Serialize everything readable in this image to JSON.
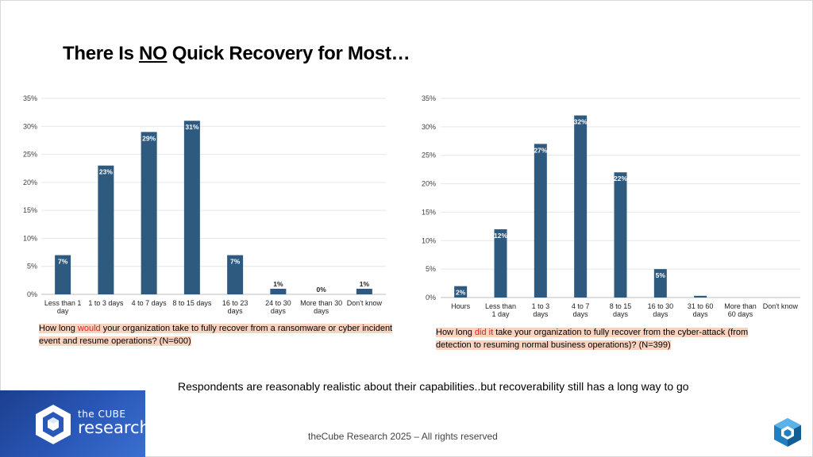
{
  "title": {
    "prefix": "There Is ",
    "emphasis": "NO",
    "suffix": " Quick Recovery for Most…"
  },
  "chart_data": [
    {
      "type": "bar",
      "categories": [
        "Less than 1 day",
        "1 to 3 days",
        "4 to 7 days",
        "8 to 15 days",
        "16 to 23 days",
        "24 to 30 days",
        "More than 30 days",
        "Don't know"
      ],
      "values": [
        7,
        23,
        29,
        31,
        7,
        1,
        0,
        1
      ],
      "data_labels": [
        "7%",
        "23%",
        "29%",
        "31%",
        "7%",
        "1%",
        "0%",
        "1%"
      ],
      "yticks": [
        "0%",
        "5%",
        "10%",
        "15%",
        "20%",
        "25%",
        "30%",
        "35%"
      ],
      "ylim": [
        0,
        35
      ],
      "ylabel": "",
      "xlabel": "",
      "question": {
        "before": "How long ",
        "highlight": "would",
        "after": " your organization take to fully recover from a ransomware or cyber incident event and resume operations? (N=600)"
      }
    },
    {
      "type": "bar",
      "categories": [
        "Hours",
        "Less than 1 day",
        "1 to 3 days",
        "4 to 7 days",
        "8 to 15 days",
        "16 to 30 days",
        "31 to 60 days",
        "More than 60 days",
        "Don't know"
      ],
      "values": [
        2,
        12,
        27,
        32,
        22,
        5,
        0.3,
        0,
        0
      ],
      "data_labels": [
        "2%",
        "12%",
        "27%",
        "32%",
        "22%",
        "5%",
        "",
        "",
        ""
      ],
      "yticks": [
        "0%",
        "5%",
        "10%",
        "15%",
        "20%",
        "25%",
        "30%",
        "35%"
      ],
      "ylim": [
        0,
        35
      ],
      "ylabel": "",
      "xlabel": "",
      "question": {
        "before": "How long ",
        "highlight": "did it",
        "after": " take your organization to fully recover from the cyber-attack (from detection to resuming normal business operations)? (N=399)"
      }
    }
  ],
  "summary": "Respondents are reasonably realistic about their capabilities..but recoverability still has a long way to go",
  "footer": "theCube Research 2025 – All rights reserved",
  "logo": {
    "line1": "the CUBE",
    "line2": "research"
  },
  "colors": {
    "bar": "#2e5a80",
    "highlight": "#f9d3bf",
    "emphasis": "#e02020"
  }
}
